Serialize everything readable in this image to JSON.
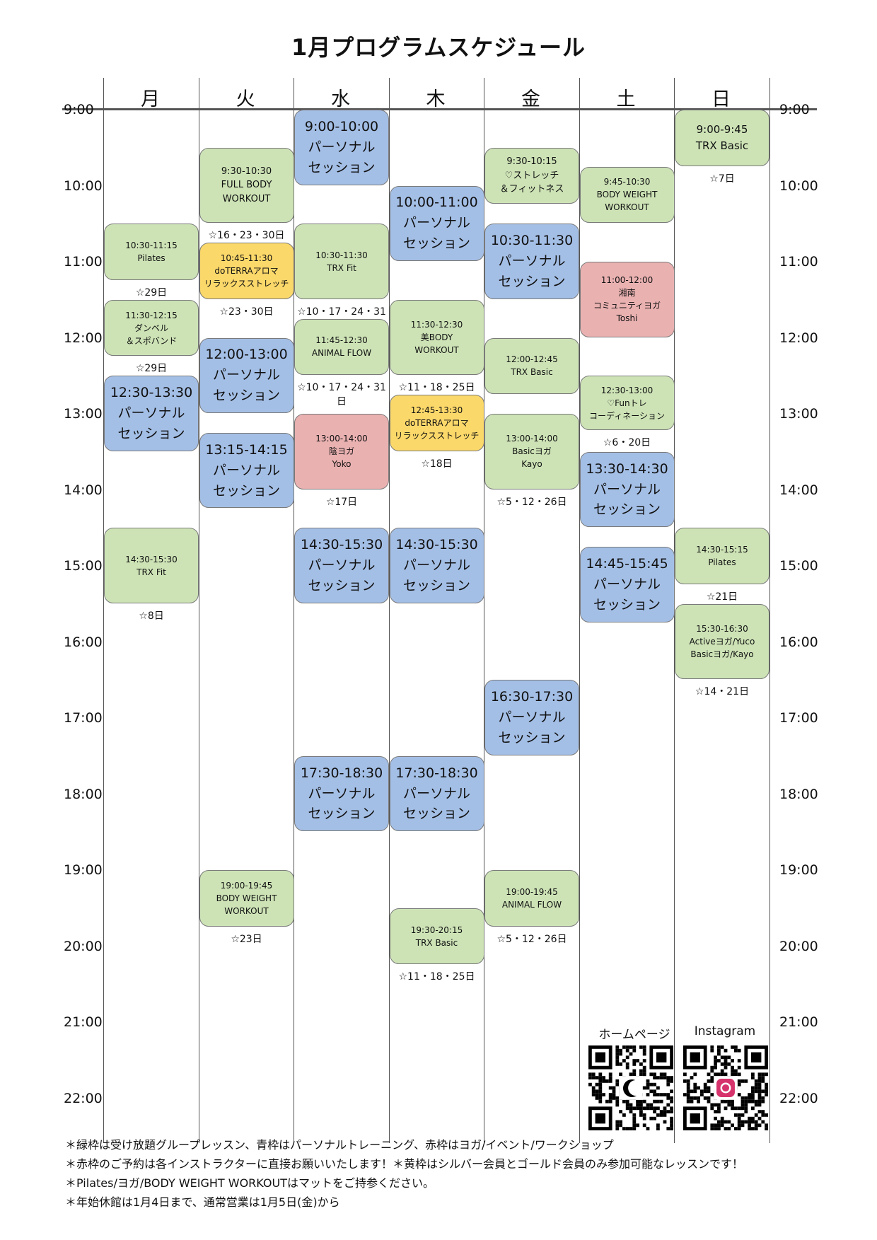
{
  "title": "1月プログラムスケジュール",
  "days": [
    "月",
    "火",
    "水",
    "木",
    "金",
    "土",
    "日"
  ],
  "times": [
    "9:00",
    "10:00",
    "11:00",
    "12:00",
    "13:00",
    "14:00",
    "15:00",
    "16:00",
    "17:00",
    "18:00",
    "19:00",
    "20:00",
    "21:00",
    "22:00"
  ],
  "colors": {
    "green": "#cde3b6",
    "blue": "#a4bfe6",
    "red": "#eab1b1",
    "yellow": "#fbd86a"
  },
  "lessons": [
    {
      "day": 0,
      "color": "green",
      "lines": [
        "10:30-11:15",
        "Pilates"
      ],
      "note": "☆29日"
    },
    {
      "day": 0,
      "color": "green",
      "lines": [
        "11:30-12:15",
        "ダンベル",
        "＆スポバンド"
      ],
      "note": "☆29日"
    },
    {
      "day": 0,
      "color": "blue",
      "lines": [
        "12:30-13:30",
        "パーソナル",
        "セッション"
      ],
      "note": ""
    },
    {
      "day": 0,
      "color": "green",
      "lines": [
        "14:30-15:30",
        "TRX Fit"
      ],
      "note": "☆8日"
    },
    {
      "day": 1,
      "color": "green",
      "lines": [
        "9:30-10:30",
        "FULL BODY",
        "WORKOUT"
      ],
      "note": "☆16・23・30日"
    },
    {
      "day": 1,
      "color": "yellow",
      "lines": [
        "10:45-11:30",
        "doTERRAアロマ",
        "リラックスストレッチ"
      ],
      "note": "☆23・30日"
    },
    {
      "day": 1,
      "color": "blue",
      "lines": [
        "12:00-13:00",
        "パーソナル",
        "セッション"
      ],
      "note": ""
    },
    {
      "day": 1,
      "color": "blue",
      "lines": [
        "13:15-14:15",
        "パーソナル",
        "セッション"
      ],
      "note": ""
    },
    {
      "day": 1,
      "color": "green",
      "lines": [
        "19:00-19:45",
        "BODY WEIGHT",
        "WORKOUT"
      ],
      "note": "☆23日"
    },
    {
      "day": 2,
      "color": "blue",
      "lines": [
        "9:00-10:00",
        "パーソナル",
        "セッション"
      ],
      "note": ""
    },
    {
      "day": 2,
      "color": "green",
      "lines": [
        "10:30-11:30",
        "TRX Fit"
      ],
      "note": "☆10・17・24・31日"
    },
    {
      "day": 2,
      "color": "green",
      "lines": [
        "11:45-12:30",
        "ANIMAL FLOW"
      ],
      "note": "☆10・17・24・31日"
    },
    {
      "day": 2,
      "color": "red",
      "lines": [
        "13:00-14:00",
        "陰ヨガ",
        "Yoko"
      ],
      "note": "☆17日"
    },
    {
      "day": 2,
      "color": "blue",
      "lines": [
        "14:30-15:30",
        "パーソナル",
        "セッション"
      ],
      "note": ""
    },
    {
      "day": 2,
      "color": "blue",
      "lines": [
        "17:30-18:30",
        "パーソナル",
        "セッション"
      ],
      "note": ""
    },
    {
      "day": 3,
      "color": "blue",
      "lines": [
        "10:00-11:00",
        "パーソナル",
        "セッション"
      ],
      "note": ""
    },
    {
      "day": 3,
      "color": "green",
      "lines": [
        "11:30-12:30",
        "美BODY",
        "WORKOUT"
      ],
      "note": "☆11・18・25日"
    },
    {
      "day": 3,
      "color": "yellow",
      "lines": [
        "12:45-13:30",
        "doTERRAアロマ",
        "リラックスストレッチ"
      ],
      "note": "☆18日"
    },
    {
      "day": 3,
      "color": "blue",
      "lines": [
        "14:30-15:30",
        "パーソナル",
        "セッション"
      ],
      "note": ""
    },
    {
      "day": 3,
      "color": "blue",
      "lines": [
        "17:30-18:30",
        "パーソナル",
        "セッション"
      ],
      "note": ""
    },
    {
      "day": 3,
      "color": "green",
      "lines": [
        "19:30-20:15",
        "TRX Basic"
      ],
      "note": "☆11・18・25日"
    },
    {
      "day": 4,
      "color": "green",
      "lines": [
        "9:30-10:15",
        "♡ストレッチ",
        "＆フィットネス"
      ],
      "note": ""
    },
    {
      "day": 4,
      "color": "blue",
      "lines": [
        "10:30-11:30",
        "パーソナル",
        "セッション"
      ],
      "note": ""
    },
    {
      "day": 4,
      "color": "green",
      "lines": [
        "12:00-12:45",
        "TRX Basic"
      ],
      "note": ""
    },
    {
      "day": 4,
      "color": "green",
      "lines": [
        "13:00-14:00",
        "Basicヨガ",
        "Kayo"
      ],
      "note": "☆5・12・26日"
    },
    {
      "day": 4,
      "color": "blue",
      "lines": [
        "16:30-17:30",
        "パーソナル",
        "セッション"
      ],
      "note": ""
    },
    {
      "day": 4,
      "color": "green",
      "lines": [
        "19:00-19:45",
        "ANIMAL FLOW"
      ],
      "note": "☆5・12・26日"
    },
    {
      "day": 5,
      "color": "green",
      "lines": [
        "9:45-10:30",
        "BODY WEIGHT",
        "WORKOUT"
      ],
      "note": ""
    },
    {
      "day": 5,
      "color": "red",
      "lines": [
        "11:00-12:00",
        "湘南",
        "コミュニティヨガ",
        "Toshi"
      ],
      "note": ""
    },
    {
      "day": 5,
      "color": "green",
      "lines": [
        "12:30-13:00",
        "♡Funトレ",
        "コーディネーション"
      ],
      "note": "☆6・20日"
    },
    {
      "day": 5,
      "color": "blue",
      "lines": [
        "13:30-14:30",
        "パーソナル",
        "セッション"
      ],
      "note": ""
    },
    {
      "day": 5,
      "color": "blue",
      "lines": [
        "14:45-15:45",
        "パーソナル",
        "セッション"
      ],
      "note": ""
    },
    {
      "day": 6,
      "color": "green",
      "lines": [
        "9:00-9:45",
        "TRX Basic"
      ],
      "note": "☆7日"
    },
    {
      "day": 6,
      "color": "green",
      "lines": [
        "14:30-15:15",
        "Pilates"
      ],
      "note": "☆21日"
    },
    {
      "day": 6,
      "color": "green",
      "lines": [
        "15:30-16:30",
        "Activeヨガ/Yuco",
        "Basicヨガ/Kayo"
      ],
      "note": "☆14・21日"
    }
  ],
  "qr": {
    "homepage_label": "ホームページ",
    "instagram_label": "Instagram"
  },
  "footer": [
    "＊緑枠は受け放題グループレッスン、青枠はパーソナルトレーニング、赤枠はヨガ/イベント/ワークショップ",
    "＊赤枠のご予約は各インストラクターに直接お願いいたします！＊黄枠はシルバー会員とゴールド会員のみ参加可能なレッスンです！",
    "＊Pilates/ヨガ/BODY WEIGHT WORKOUTはマットをご持参ください。",
    "＊年始休館は1月4日まで、通常営業は1月5日(金)から"
  ]
}
